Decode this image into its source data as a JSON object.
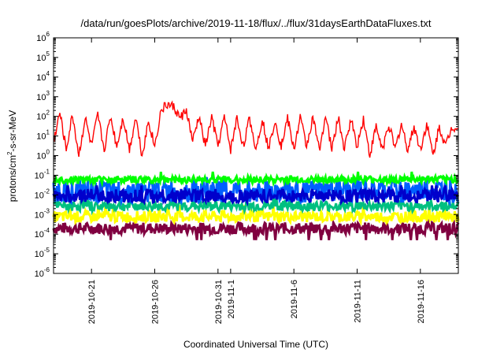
{
  "chart_data": {
    "type": "line",
    "title": "/data/run/goesPlots/archive/2019-11-18/flux/../flux/31daysEarthDataFluxes.txt",
    "xlabel": "Coordinated Universal Time (UTC)",
    "ylabel_base": "protons/cm",
    "ylabel_sup": "2",
    "ylabel_rest": "-s-sr-MeV",
    "y_scale": "log",
    "ylim": [
      1e-06,
      1000000.0
    ],
    "y_ticks": [
      {
        "exp": "-6",
        "value": 1e-06
      },
      {
        "exp": "-5",
        "value": 1e-05
      },
      {
        "exp": "-4",
        "value": 0.0001
      },
      {
        "exp": "-3",
        "value": 0.001
      },
      {
        "exp": "-2",
        "value": 0.01
      },
      {
        "exp": "-1",
        "value": 0.1
      },
      {
        "exp": "0",
        "value": 1
      },
      {
        "exp": "1",
        "value": 10
      },
      {
        "exp": "2",
        "value": 100
      },
      {
        "exp": "3",
        "value": 1000
      },
      {
        "exp": "4",
        "value": 10000
      },
      {
        "exp": "5",
        "value": 100000
      },
      {
        "exp": "6",
        "value": 1000000
      }
    ],
    "xlim": [
      "2019-10-18",
      "2019-11-19"
    ],
    "x_ticks": [
      {
        "date": "2019-10-21",
        "label": "2019-10-21"
      },
      {
        "date": "2019-10-26",
        "label": "2019-10-26"
      },
      {
        "date": "2019-10-31",
        "label": "2019-10-31"
      },
      {
        "date": "2019-11-01",
        "label": "2019-11-1"
      },
      {
        "date": "2019-11-06",
        "label": "2019-11-6"
      },
      {
        "date": "2019-11-11",
        "label": "2019-11-11"
      },
      {
        "date": "2019-11-16",
        "label": "2019-11-16"
      }
    ],
    "grid": false,
    "legend": "none",
    "series": [
      {
        "color": "#800040",
        "band": [
          0.0001,
          0.0004
        ],
        "spike_low": 5e-05
      },
      {
        "color": "#ffff00",
        "band": [
          0.0004,
          0.0015
        ],
        "spike_high": 0.003
      },
      {
        "color": "#00c080",
        "band": [
          0.0015,
          0.005
        ],
        "spike_high": 0.008
      },
      {
        "color": "#0060ff",
        "band": [
          0.004,
          0.06
        ],
        "spike_high": 0.08
      },
      {
        "color": "#00ff00",
        "band": [
          0.04,
          0.09
        ],
        "spike_high": 0.15
      },
      {
        "color": "#0000cc",
        "band": [
          0.004,
          0.02
        ],
        "spike_high": 0.03
      },
      {
        "color": "#ff0000",
        "x": [
          "2019-10-18T00:00",
          "2019-10-18T12:00",
          "2019-10-19T00:00",
          "2019-10-19T12:00",
          "2019-10-20T00:00",
          "2019-10-20T12:00",
          "2019-10-21T00:00",
          "2019-10-21T12:00",
          "2019-10-22T00:00",
          "2019-10-22T12:00",
          "2019-10-23T00:00",
          "2019-10-23T12:00",
          "2019-10-24T00:00",
          "2019-10-24T12:00",
          "2019-10-25T00:00",
          "2019-10-25T12:00",
          "2019-10-26T00:00",
          "2019-10-26T12:00",
          "2019-10-27T00:00",
          "2019-10-27T12:00",
          "2019-10-28T00:00",
          "2019-10-28T12:00",
          "2019-10-29T00:00",
          "2019-10-29T12:00",
          "2019-10-30T00:00",
          "2019-10-30T12:00",
          "2019-10-31T00:00",
          "2019-10-31T12:00",
          "2019-11-01T00:00",
          "2019-11-01T12:00",
          "2019-11-02T00:00",
          "2019-11-02T12:00",
          "2019-11-03T00:00",
          "2019-11-03T12:00",
          "2019-11-04T00:00",
          "2019-11-04T12:00",
          "2019-11-05T00:00",
          "2019-11-05T12:00",
          "2019-11-06T00:00",
          "2019-11-06T12:00",
          "2019-11-07T00:00",
          "2019-11-07T12:00",
          "2019-11-08T00:00",
          "2019-11-08T12:00",
          "2019-11-09T00:00",
          "2019-11-09T12:00",
          "2019-11-10T00:00",
          "2019-11-10T12:00",
          "2019-11-11T00:00",
          "2019-11-11T12:00",
          "2019-11-12T00:00",
          "2019-11-12T12:00",
          "2019-11-13T00:00",
          "2019-11-13T12:00",
          "2019-11-14T00:00",
          "2019-11-14T12:00",
          "2019-11-15T00:00",
          "2019-11-15T12:00",
          "2019-11-16T00:00",
          "2019-11-16T12:00",
          "2019-11-17T00:00",
          "2019-11-17T12:00",
          "2019-11-18T00:00",
          "2019-11-18T12:00",
          "2019-11-19T00:00"
        ],
        "y": [
          5,
          150,
          2,
          120,
          1,
          80,
          3,
          110,
          2,
          100,
          3,
          90,
          2,
          100,
          1,
          60,
          3,
          200,
          400,
          300,
          80,
          200,
          5,
          100,
          3,
          90,
          3,
          90,
          2,
          80,
          3,
          80,
          2,
          80,
          2,
          70,
          3,
          80,
          2,
          90,
          3,
          90,
          2,
          100,
          2,
          90,
          2,
          80,
          3,
          80,
          1,
          30,
          2,
          40,
          2,
          40,
          2,
          30,
          2,
          40,
          1,
          30,
          3,
          30,
          25
        ]
      }
    ]
  }
}
